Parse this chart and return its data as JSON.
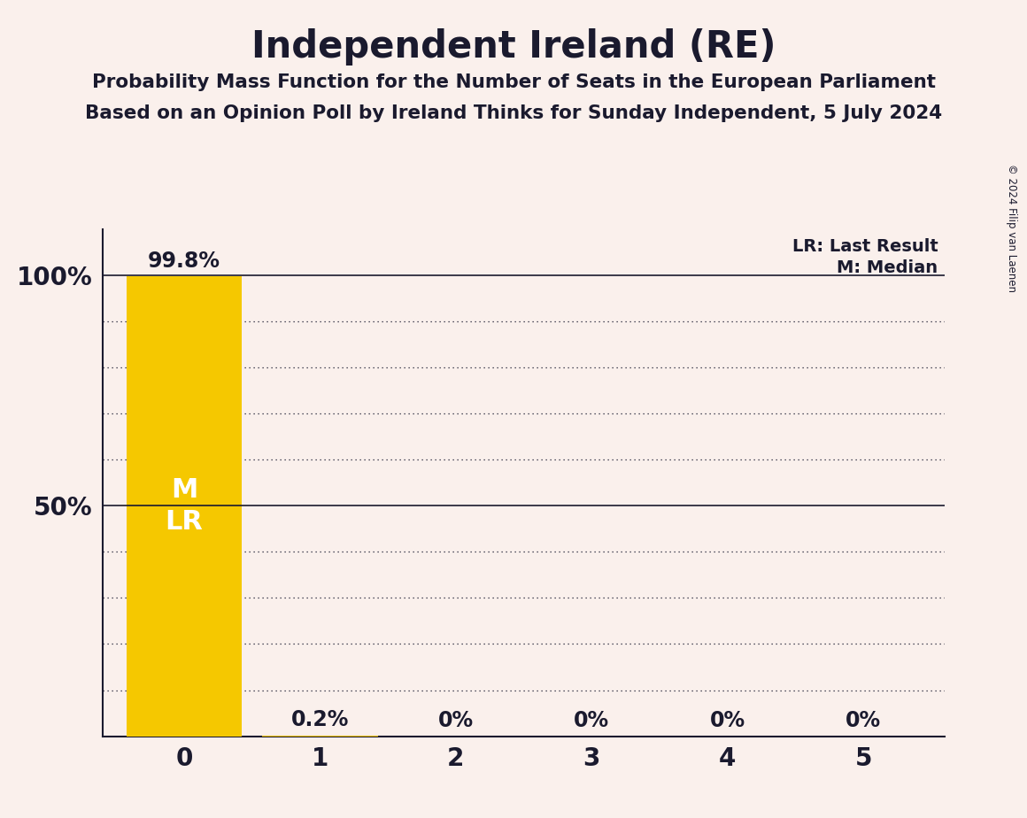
{
  "title": "Independent Ireland (RE)",
  "subtitle1": "Probability Mass Function for the Number of Seats in the European Parliament",
  "subtitle2": "Based on an Opinion Poll by Ireland Thinks for Sunday Independent, 5 July 2024",
  "copyright": "© 2024 Filip van Laenen",
  "categories": [
    0,
    1,
    2,
    3,
    4,
    5
  ],
  "values": [
    99.8,
    0.2,
    0.0,
    0.0,
    0.0,
    0.0
  ],
  "bar_color": "#F5C800",
  "background_color": "#FAF0EC",
  "text_color": "#1a1a2e",
  "bar_label_color": "#FFFFFF",
  "median": 0,
  "last_result": 0,
  "legend_lr": "LR: Last Result",
  "legend_m": "M: Median",
  "ylim": [
    0,
    110
  ]
}
